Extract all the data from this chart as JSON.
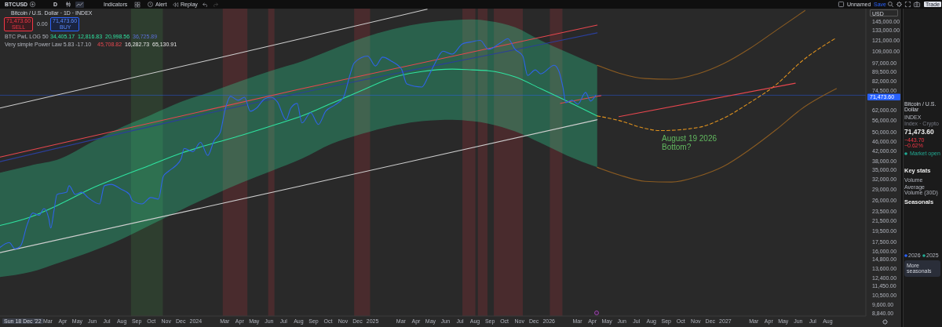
{
  "chart_data": {
    "type": "line",
    "title": "Bitcoin / U.S. Dollar · 1D · INDEX",
    "ylabel": "USD",
    "log": true,
    "xlim": [
      "2022-11-22",
      "2027-10-19"
    ],
    "ylim": [
      8600,
      164000
    ],
    "xticks": [
      {
        "value": "2023-03",
        "label": "Mar"
      },
      {
        "value": "2023-04",
        "label": "Apr"
      },
      {
        "value": "2023-05",
        "label": "May"
      },
      {
        "value": "2023-06",
        "label": "Jun"
      },
      {
        "value": "2023-07",
        "label": "Jul"
      },
      {
        "value": "2023-08",
        "label": "Aug"
      },
      {
        "value": "2023-09",
        "label": "Sep"
      },
      {
        "value": "2023-10",
        "label": "Oct"
      },
      {
        "value": "2023-11",
        "label": "Nov"
      },
      {
        "value": "2023-12",
        "label": "Dec"
      },
      {
        "value": "2024-01",
        "label": "2024"
      },
      {
        "value": "2024-03",
        "label": "Mar"
      },
      {
        "value": "2024-04",
        "label": "Apr"
      },
      {
        "value": "2024-05",
        "label": "May"
      },
      {
        "value": "2024-06",
        "label": "Jun"
      },
      {
        "value": "2024-07",
        "label": "Jul"
      },
      {
        "value": "2024-08",
        "label": "Aug"
      },
      {
        "value": "2024-09",
        "label": "Sep"
      },
      {
        "value": "2024-10",
        "label": "Oct"
      },
      {
        "value": "2024-11",
        "label": "Nov"
      },
      {
        "value": "2024-12",
        "label": "Dec"
      },
      {
        "value": "2025-01",
        "label": "2025"
      },
      {
        "value": "2025-03",
        "label": "Mar"
      },
      {
        "value": "2025-04",
        "label": "Apr"
      },
      {
        "value": "2025-05",
        "label": "May"
      },
      {
        "value": "2025-06",
        "label": "Jun"
      },
      {
        "value": "2025-07",
        "label": "Jul"
      },
      {
        "value": "2025-08",
        "label": "Aug"
      },
      {
        "value": "2025-09",
        "label": "Sep"
      },
      {
        "value": "2025-10",
        "label": "Oct"
      },
      {
        "value": "2025-11",
        "label": "Nov"
      },
      {
        "value": "2025-12",
        "label": "Dec"
      },
      {
        "value": "2026-01",
        "label": "2026"
      },
      {
        "value": "2026-03",
        "label": "Mar"
      },
      {
        "value": "2026-04",
        "label": "Apr"
      },
      {
        "value": "2026-05",
        "label": "May"
      },
      {
        "value": "2026-06",
        "label": "Jun"
      },
      {
        "value": "2026-07",
        "label": "Jul"
      },
      {
        "value": "2026-08",
        "label": "Aug"
      },
      {
        "value": "2026-09",
        "label": "Sep"
      },
      {
        "value": "2026-10",
        "label": "Oct"
      },
      {
        "value": "2026-11",
        "label": "Nov"
      },
      {
        "value": "2026-12",
        "label": "Dec"
      },
      {
        "value": "2027-01",
        "label": "2027"
      },
      {
        "value": "2027-03",
        "label": "Mar"
      },
      {
        "value": "2027-04",
        "label": "Apr"
      },
      {
        "value": "2027-05",
        "label": "May"
      },
      {
        "value": "2027-06",
        "label": "Jun"
      },
      {
        "value": "2027-07",
        "label": "Jul"
      },
      {
        "value": "2027-08",
        "label": "Aug"
      }
    ],
    "yticks": [
      {
        "value": 145000,
        "label": "145,000.00"
      },
      {
        "value": 133000,
        "label": "133,000.00"
      },
      {
        "value": 121000,
        "label": "121,000.00"
      },
      {
        "value": 109000,
        "label": "109,000.00"
      },
      {
        "value": 97000,
        "label": "97,000.00"
      },
      {
        "value": 89500,
        "label": "89,500.00"
      },
      {
        "value": 82000,
        "label": "82,000.00"
      },
      {
        "value": 74500,
        "label": "74,500.00"
      },
      {
        "value": 62000,
        "label": "62,000.00"
      },
      {
        "value": 56000,
        "label": "56,000.00"
      },
      {
        "value": 50000,
        "label": "50,000.00"
      },
      {
        "value": 46000,
        "label": "46,000.00"
      },
      {
        "value": 42000,
        "label": "42,000.00"
      },
      {
        "value": 38000,
        "label": "38,000.00"
      },
      {
        "value": 35000,
        "label": "35,000.00"
      },
      {
        "value": 32000,
        "label": "32,000.00"
      },
      {
        "value": 29000,
        "label": "29,000.00"
      },
      {
        "value": 26000,
        "label": "26,000.00"
      },
      {
        "value": 23500,
        "label": "23,500.00"
      },
      {
        "value": 21500,
        "label": "21,500.00"
      },
      {
        "value": 19500,
        "label": "19,500.00"
      },
      {
        "value": 17500,
        "label": "17,500.00"
      },
      {
        "value": 16000,
        "label": "16,000.00"
      },
      {
        "value": 14800,
        "label": "14,800.00"
      },
      {
        "value": 13600,
        "label": "13,600.00"
      },
      {
        "value": 12400,
        "label": "12,400.00"
      },
      {
        "value": 11450,
        "label": "11,450.00"
      },
      {
        "value": 10500,
        "label": "10,500.00"
      },
      {
        "value": 9600,
        "label": "9,600.00"
      },
      {
        "value": 8840,
        "label": "8,840.00"
      }
    ],
    "bands": [
      {
        "axis": "x",
        "from": "2023-08-20",
        "to": "2023-10-25",
        "color": "#4caf50"
      },
      {
        "axis": "x",
        "from": "2024-02-26",
        "to": "2024-04-17",
        "color": "#f23645"
      },
      {
        "axis": "x",
        "from": "2024-05-30",
        "to": "2024-06-12",
        "color": "#f23645"
      },
      {
        "axis": "x",
        "from": "2024-11-24",
        "to": "2024-12-27",
        "color": "#f23645"
      },
      {
        "axis": "x",
        "from": "2025-07-06",
        "to": "2025-08-02",
        "color": "#f23645"
      },
      {
        "axis": "x",
        "from": "2025-08-07",
        "to": "2025-08-27",
        "color": "#f23645"
      },
      {
        "axis": "x",
        "from": "2025-09-09",
        "to": "2025-11-08",
        "color": "#f23645"
      },
      {
        "axis": "x",
        "from": "2026-01-03",
        "to": "2026-01-29",
        "color": "#f23645"
      }
    ],
    "ref_lines": [
      {
        "axis": "y",
        "value": 71473.6,
        "label": "71,473.60",
        "color": "#2962ff"
      }
    ],
    "series": [
      {
        "color": "#cfcfcf",
        "x": [
          "2022-11-22",
          "2024-02-06",
          "2025-04-24"
        ],
        "values": [
          63200,
          101000,
          163000
        ]
      },
      {
        "color": "#cfcfcf",
        "x": [
          "2022-11-22",
          "2024-08-01",
          "2026-04-11"
        ],
        "values": [
          15800,
          29800,
          56500
        ]
      },
      {
        "color": "#e8474f",
        "x": [
          "2022-11-22",
          "2024-08-01",
          "2026-04-11"
        ],
        "values": [
          39500,
          75600,
          140000
        ]
      },
      {
        "color": "#2b3f9a",
        "x": [
          "2022-11-22",
          "2024-08-01",
          "2025-12-31",
          "2026-04-11"
        ],
        "values": [
          37800,
          72800,
          118000,
          130000
        ]
      },
      {
        "color": "#2fe3a0",
        "x": [
          "2022-11-22",
          "2023-01-23",
          "2023-03-27",
          "2023-05-28",
          "2023-07-30",
          "2023-09-30",
          "2023-12-02",
          "2024-02-02",
          "2024-04-05",
          "2024-06-05",
          "2024-08-08",
          "2024-10-08",
          "2024-12-11",
          "2025-02-10",
          "2025-04-13",
          "2025-06-15",
          "2025-07-27",
          "2025-08-29",
          "2025-10-23",
          "2025-12-15",
          "2026-02-07",
          "2026-04-11"
        ],
        "values": [
          20500,
          22200,
          25200,
          29100,
          32800,
          36600,
          41000,
          44800,
          48700,
          53200,
          58600,
          66100,
          75000,
          84500,
          89700,
          91800,
          91100,
          90400,
          85200,
          76100,
          67600,
          58600
        ],
        "upper": [
          34000,
          36400,
          38900,
          45200,
          52400,
          59100,
          67100,
          73900,
          82100,
          90400,
          98900,
          110600,
          123700,
          134300,
          142500,
          146900,
          148000,
          145800,
          137300,
          121000,
          108100,
          95300
        ],
        "lower": [
          12500,
          13100,
          14400,
          15900,
          17900,
          20600,
          23800,
          27200,
          30900,
          34500,
          38900,
          44800,
          49400,
          53200,
          55700,
          56500,
          55700,
          54400,
          50500,
          45200,
          40100,
          35800
        ]
      },
      {
        "color": "#8a5b22",
        "x": [
          "2026-04-11",
          "2026-05-26",
          "2026-07-19",
          "2026-09-12",
          "2026-11-05",
          "2026-12-28",
          "2027-02-21",
          "2027-04-16",
          "2027-06-15"
        ],
        "values": [
          95300,
          88400,
          83900,
          83300,
          87700,
          96700,
          112000,
          133000,
          161000
        ]
      },
      {
        "color": "#e0921e",
        "line_style": "dashed",
        "x": [
          "2026-04-11",
          "2026-05-26",
          "2026-07-19",
          "2026-08-19",
          "2026-11-05",
          "2026-12-28",
          "2027-02-21",
          "2027-04-16",
          "2027-06-08",
          "2027-08-19"
        ],
        "values": [
          58600,
          56100,
          52000,
          50900,
          52400,
          57300,
          66600,
          79000,
          98900,
          124000
        ]
      },
      {
        "color": "#8a5b22",
        "x": [
          "2026-04-11",
          "2026-05-26",
          "2026-07-19",
          "2026-09-12",
          "2026-11-05",
          "2026-12-28",
          "2027-02-21",
          "2027-04-16",
          "2027-06-08",
          "2027-08-19"
        ],
        "values": [
          35800,
          33300,
          31300,
          31100,
          32800,
          36100,
          42500,
          51300,
          62700,
          76100
        ]
      },
      {
        "color": "#e8474f",
        "x": [
          "2026-01-25",
          "2026-04-19"
        ],
        "values": [
          66100,
          71200
        ]
      },
      {
        "color": "#e8474f",
        "x": [
          "2026-05-26",
          "2027-05-26"
        ],
        "values": [
          58200,
          80200
        ]
      },
      {
        "color": "#2f63e8",
        "x": [
          "2022-11-22",
          "2022-12-11",
          "2022-12-23",
          "2023-01-04",
          "2023-01-17",
          "2023-01-29",
          "2023-02-11",
          "2023-02-21",
          "2023-03-03",
          "2023-03-07",
          "2023-03-14",
          "2023-03-20",
          "2023-04-09",
          "2023-04-14",
          "2023-04-27",
          "2023-05-10",
          "2023-05-23",
          "2023-06-16",
          "2023-06-26",
          "2023-07-10",
          "2023-07-30",
          "2023-08-17",
          "2023-08-23",
          "2023-09-12",
          "2023-09-30",
          "2023-10-16",
          "2023-10-26",
          "2023-11-06",
          "2023-11-19",
          "2023-12-02",
          "2023-12-08",
          "2023-12-26",
          "2024-01-11",
          "2024-01-26",
          "2024-02-08",
          "2024-02-21",
          "2024-03-02",
          "2024-03-13",
          "2024-03-29",
          "2024-04-11",
          "2024-04-23",
          "2024-05-06",
          "2024-05-23",
          "2024-06-05",
          "2024-06-18",
          "2024-07-06",
          "2024-07-16",
          "2024-07-29",
          "2024-08-08",
          "2024-08-26",
          "2024-09-11",
          "2024-09-26",
          "2024-10-15",
          "2024-11-02",
          "2024-11-15",
          "2024-11-24",
          "2024-12-22",
          "2025-01-07",
          "2025-01-22",
          "2025-02-10",
          "2025-03-02",
          "2025-03-13",
          "2025-04-13",
          "2025-04-26",
          "2025-05-09",
          "2025-05-27",
          "2025-06-15",
          "2025-07-06",
          "2025-07-22",
          "2025-08-12",
          "2025-08-29",
          "2025-09-25",
          "2025-10-08",
          "2025-10-23",
          "2025-11-08",
          "2025-11-18",
          "2025-12-04",
          "2025-12-15",
          "2026-01-12",
          "2026-01-22",
          "2026-01-30",
          "2026-02-05",
          "2026-02-18",
          "2026-03-02",
          "2026-03-18",
          "2026-03-28",
          "2026-04-08"
        ],
        "values": [
          16600,
          17400,
          16400,
          16900,
          20600,
          23100,
          22600,
          24100,
          21900,
          20000,
          23800,
          27600,
          28200,
          30000,
          27600,
          28200,
          26800,
          25200,
          30000,
          30400,
          29100,
          27600,
          26000,
          25200,
          26800,
          26400,
          32800,
          34500,
          36100,
          38900,
          42900,
          41600,
          45500,
          40100,
          46200,
          50100,
          62300,
          70700,
          68100,
          70100,
          61300,
          63200,
          69100,
          70100,
          67100,
          56500,
          63200,
          66100,
          54800,
          60400,
          54000,
          61300,
          65100,
          70100,
          86400,
          97400,
          104000,
          94600,
          103000,
          98900,
          91800,
          79600,
          77300,
          85200,
          96000,
          109000,
          106000,
          117000,
          119000,
          121000,
          111000,
          119000,
          123000,
          111000,
          104000,
          86400,
          91100,
          87700,
          95300,
          89700,
          77300,
          66600,
          68100,
          65600,
          73400,
          67600,
          71473.6
        ]
      }
    ],
    "annotations": [
      "BTCUSD",
      "D",
      "Indicators",
      "Alert",
      "Replay",
      "71,473.60",
      "SELL",
      "0.00",
      "71,473.60",
      "BUY",
      "BTC PwL LOG 50",
      "34,405.17",
      "12,816.83",
      "20,998.56",
      "36,725.89",
      "Very simple Power Law 5.83 -17.10",
      "45,708.82",
      "16,282.73",
      "65,130.91",
      "August 19 2026\nBottom?",
      "Sun 18 Dec '22",
      "Bitcoin / U.S. Dollar",
      "INDEX",
      "71,473.60",
      "−443.70 −0.62%",
      "Key stats",
      "Volume",
      "Average Volume (30D)",
      "Seasonals",
      "More seasonals",
      "Index · Crypto",
      "Market open",
      "2026",
      "2025",
      "Unnamed",
      "Save",
      "Trade"
    ]
  }
}
